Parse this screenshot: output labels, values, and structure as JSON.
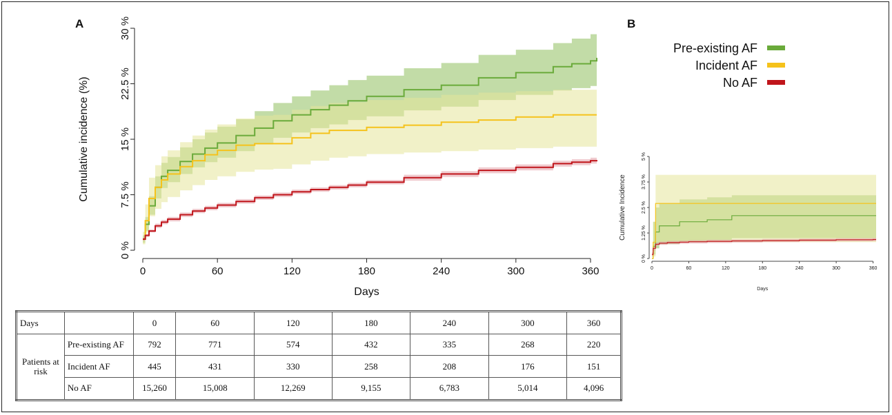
{
  "colors": {
    "pre_existing_af": "#6aaa3a",
    "incident_af": "#f5c21b",
    "no_af": "#c0151b",
    "pre_existing_band": "#8fbf5e",
    "incident_band": "#e6e69a",
    "no_af_band": "#e3a1a7"
  },
  "legend": {
    "items": [
      {
        "label": "Pre-existing AF",
        "color": "#6aaa3a"
      },
      {
        "label": "Incident AF",
        "color": "#f5c21b"
      },
      {
        "label": "No AF",
        "color": "#c0151b"
      }
    ]
  },
  "chart_data": [
    {
      "panel": "A",
      "type": "line",
      "title": "",
      "xlabel": "Days",
      "ylabel": "Cumulative incidence (%)",
      "xlim": [
        0,
        365
      ],
      "ylim": [
        0,
        30
      ],
      "xticks": [
        0,
        60,
        120,
        180,
        240,
        300,
        360
      ],
      "xtick_labels": [
        "0",
        "60",
        "120",
        "180",
        "240",
        "300",
        "360"
      ],
      "yticks": [
        0,
        7.5,
        15,
        22.5,
        30
      ],
      "ytick_labels": [
        "0 %",
        "7.5 %",
        "15 %",
        "22.5 %",
        "30 %"
      ],
      "grid": false,
      "legend_position": "top-right",
      "series": [
        {
          "name": "Pre-existing AF",
          "color": "#6aaa3a",
          "x": [
            0,
            2,
            5,
            10,
            15,
            20,
            30,
            40,
            50,
            60,
            75,
            90,
            105,
            120,
            135,
            150,
            165,
            180,
            210,
            240,
            270,
            300,
            330,
            345,
            360,
            365
          ],
          "y": [
            1.5,
            3.5,
            6.0,
            8.5,
            10.0,
            10.8,
            12.0,
            13.0,
            13.8,
            14.5,
            15.5,
            16.5,
            17.5,
            18.3,
            19.0,
            19.6,
            20.2,
            20.8,
            21.7,
            22.3,
            23.3,
            24.0,
            24.8,
            25.2,
            25.6,
            26.0
          ],
          "lower": [
            1.0,
            2.6,
            4.8,
            7.0,
            8.4,
            9.2,
            10.3,
            11.2,
            11.9,
            12.5,
            13.4,
            14.3,
            15.2,
            15.9,
            16.5,
            17.0,
            17.6,
            18.1,
            18.9,
            19.4,
            20.3,
            21.0,
            21.6,
            21.9,
            22.2,
            22.5
          ],
          "upper": [
            2.0,
            4.5,
            7.3,
            10.0,
            11.8,
            12.6,
            13.9,
            15.0,
            15.9,
            16.7,
            17.7,
            18.8,
            19.9,
            20.8,
            21.6,
            22.3,
            23.0,
            23.6,
            24.6,
            25.3,
            26.4,
            27.1,
            28.0,
            28.6,
            29.2,
            29.5
          ]
        },
        {
          "name": "Incident AF",
          "color": "#f5c21b",
          "x": [
            0,
            2,
            5,
            10,
            15,
            20,
            30,
            40,
            50,
            60,
            75,
            90,
            105,
            120,
            135,
            150,
            165,
            180,
            210,
            240,
            270,
            300,
            330,
            345,
            360,
            365
          ],
          "y": [
            1.5,
            4.0,
            7.0,
            8.5,
            9.5,
            10.3,
            11.3,
            12.1,
            12.9,
            13.5,
            14.2,
            14.4,
            14.4,
            15.2,
            15.8,
            16.2,
            16.2,
            16.6,
            16.9,
            17.3,
            17.6,
            18.0,
            18.3,
            18.3,
            18.3,
            18.3
          ],
          "lower": [
            0.8,
            2.4,
            4.6,
            5.6,
            6.5,
            7.2,
            8.1,
            8.8,
            9.5,
            10.0,
            10.6,
            10.9,
            11.0,
            11.6,
            12.1,
            12.5,
            12.7,
            13.0,
            13.2,
            13.4,
            13.6,
            13.8,
            14.0,
            14.0,
            14.0,
            14.0
          ],
          "upper": [
            2.5,
            6.2,
            9.8,
            11.5,
            12.7,
            13.5,
            14.6,
            15.5,
            16.3,
            17.0,
            17.8,
            18.2,
            18.3,
            19.0,
            19.5,
            19.9,
            20.0,
            20.3,
            20.6,
            21.0,
            21.3,
            21.5,
            21.7,
            21.7,
            21.7,
            21.7
          ]
        },
        {
          "name": "No AF",
          "color": "#c0151b",
          "x": [
            0,
            2,
            5,
            10,
            15,
            20,
            30,
            40,
            50,
            60,
            75,
            90,
            105,
            120,
            135,
            150,
            165,
            180,
            210,
            240,
            270,
            300,
            330,
            345,
            360,
            365
          ],
          "y": [
            1.5,
            2.0,
            2.6,
            3.3,
            3.8,
            4.2,
            4.8,
            5.3,
            5.7,
            6.1,
            6.6,
            7.1,
            7.5,
            7.9,
            8.2,
            8.5,
            8.8,
            9.2,
            9.8,
            10.3,
            10.8,
            11.2,
            11.7,
            11.9,
            12.1,
            12.2
          ],
          "lower": [
            1.3,
            1.8,
            2.4,
            3.0,
            3.5,
            3.9,
            4.5,
            5.0,
            5.4,
            5.8,
            6.3,
            6.8,
            7.2,
            7.6,
            7.9,
            8.2,
            8.5,
            8.9,
            9.4,
            9.9,
            10.4,
            10.8,
            11.3,
            11.5,
            11.7,
            11.8
          ],
          "upper": [
            1.7,
            2.2,
            2.8,
            3.6,
            4.1,
            4.5,
            5.1,
            5.6,
            6.0,
            6.4,
            6.9,
            7.4,
            7.8,
            8.2,
            8.5,
            8.8,
            9.1,
            9.5,
            10.2,
            10.7,
            11.2,
            11.6,
            12.1,
            12.3,
            12.5,
            12.6
          ]
        }
      ]
    },
    {
      "panel": "B",
      "type": "line",
      "title": "",
      "xlabel": "Days",
      "ylabel": "Cumulative Incidence",
      "xlim": [
        0,
        365
      ],
      "ylim": [
        0,
        5
      ],
      "xticks": [
        0,
        60,
        120,
        180,
        240,
        300,
        360
      ],
      "xtick_labels": [
        "0",
        "60",
        "120",
        "180",
        "240",
        "300",
        "360"
      ],
      "yticks": [
        0,
        1.25,
        2.5,
        3.75,
        5
      ],
      "ytick_labels": [
        "0 %",
        "1.25 %",
        "2.5 %",
        "3.75 %",
        "5 %"
      ],
      "grid": false,
      "series": [
        {
          "name": "Pre-existing AF",
          "color": "#6aaa3a",
          "x": [
            0,
            2,
            6,
            12,
            25,
            45,
            60,
            90,
            130,
            180,
            240,
            300,
            360
          ],
          "y": [
            0,
            0.6,
            1.3,
            1.6,
            1.6,
            1.8,
            1.8,
            1.9,
            2.1,
            2.1,
            2.1,
            2.1,
            2.1
          ],
          "lower": [
            0,
            0.2,
            0.5,
            0.7,
            0.7,
            0.8,
            0.8,
            0.9,
            1.0,
            1.0,
            1.0,
            1.0,
            1.0
          ],
          "upper": [
            0,
            1.8,
            2.5,
            2.7,
            2.7,
            2.9,
            2.9,
            3.0,
            3.1,
            3.1,
            3.1,
            3.1,
            3.1
          ]
        },
        {
          "name": "Incident AF",
          "color": "#f5c21b",
          "x": [
            0,
            2,
            6,
            12,
            25,
            45,
            60,
            90,
            130,
            180,
            240,
            300,
            360
          ],
          "y": [
            0,
            0.8,
            2.7,
            2.7,
            2.7,
            2.7,
            2.7,
            2.7,
            2.7,
            2.7,
            2.7,
            2.7,
            2.7
          ],
          "lower": [
            0,
            0.1,
            0.8,
            0.8,
            0.8,
            0.8,
            0.8,
            0.8,
            0.8,
            0.8,
            0.8,
            0.8,
            0.8
          ],
          "upper": [
            0,
            1.8,
            4.1,
            4.1,
            4.1,
            4.1,
            4.1,
            4.1,
            4.1,
            4.1,
            4.1,
            4.1,
            4.1
          ]
        },
        {
          "name": "No AF",
          "color": "#c0151b",
          "x": [
            0,
            2,
            6,
            12,
            25,
            45,
            60,
            90,
            130,
            180,
            240,
            300,
            360
          ],
          "y": [
            0.2,
            0.5,
            0.7,
            0.75,
            0.78,
            0.8,
            0.82,
            0.84,
            0.86,
            0.88,
            0.9,
            0.92,
            0.93
          ],
          "lower": [
            0.1,
            0.4,
            0.62,
            0.67,
            0.7,
            0.72,
            0.74,
            0.76,
            0.78,
            0.8,
            0.82,
            0.84,
            0.85
          ],
          "upper": [
            0.3,
            0.6,
            0.78,
            0.83,
            0.86,
            0.88,
            0.9,
            0.92,
            0.94,
            0.96,
            0.98,
            1.0,
            1.01
          ]
        }
      ]
    }
  ],
  "risk_table": {
    "days_label": "Days",
    "days": [
      "0",
      "60",
      "120",
      "180",
      "240",
      "300",
      "360"
    ],
    "group_label": "Patients at risk",
    "rows": [
      {
        "label": "Pre-existing AF",
        "values": [
          "792",
          "771",
          "574",
          "432",
          "335",
          "268",
          "220"
        ]
      },
      {
        "label": "Incident AF",
        "values": [
          "445",
          "431",
          "330",
          "258",
          "208",
          "176",
          "151"
        ]
      },
      {
        "label": "No AF",
        "values": [
          "15,260",
          "15,008",
          "12,269",
          "9,155",
          "6,783",
          "5,014",
          "4,096"
        ]
      }
    ]
  }
}
